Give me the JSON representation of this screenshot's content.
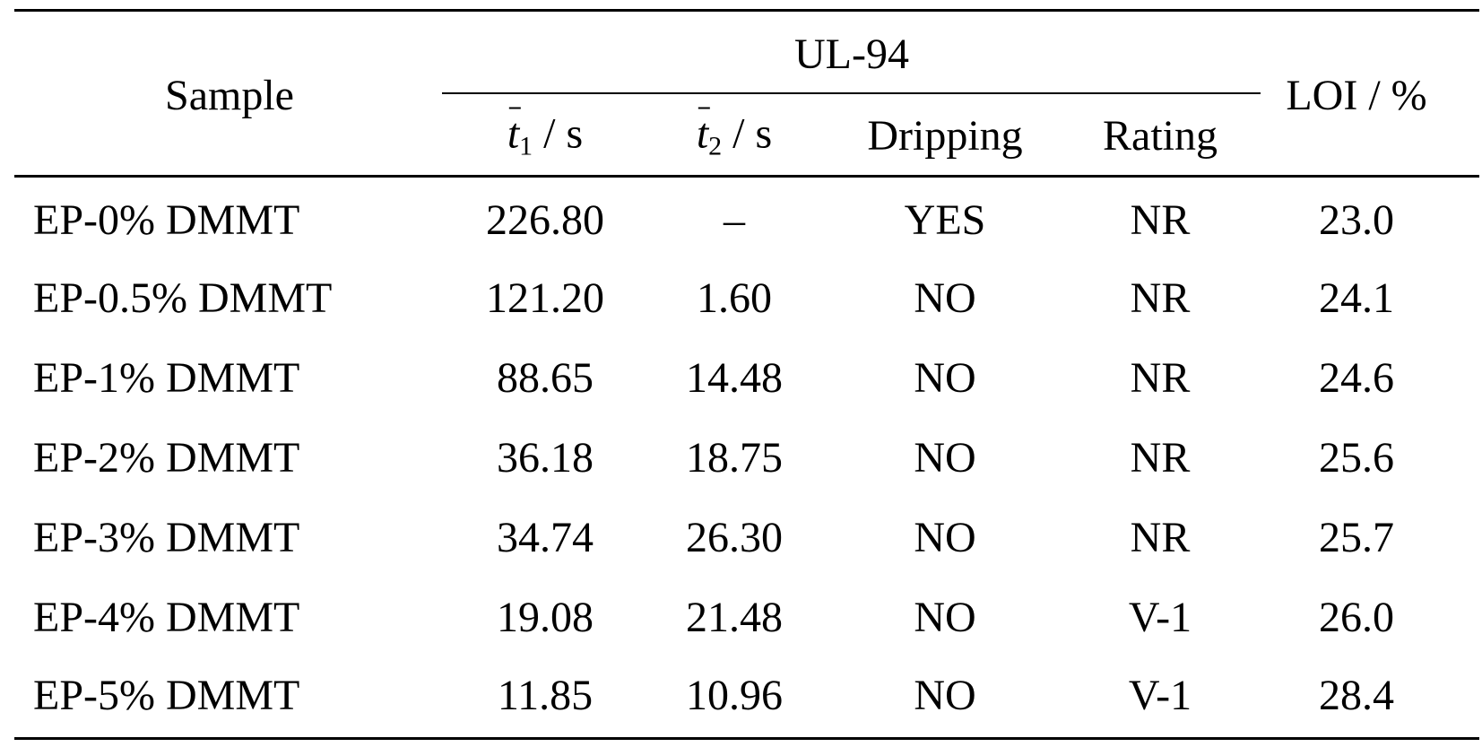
{
  "table": {
    "header": {
      "sample": "Sample",
      "group": "UL-94",
      "t1": {
        "symbol": "t",
        "subscript": "1",
        "unit": " / s"
      },
      "t2": {
        "symbol": "t",
        "subscript": "2",
        "unit": " / s"
      },
      "dripping": "Dripping",
      "rating": "Rating",
      "loi": "LOI / %"
    },
    "rows": [
      {
        "sample": "EP-0% DMMT",
        "t1": "226.80",
        "t2": "–",
        "dripping": "YES",
        "rating": "NR",
        "loi": "23.0"
      },
      {
        "sample": "EP-0.5% DMMT",
        "t1": "121.20",
        "t2": "1.60",
        "dripping": "NO",
        "rating": "NR",
        "loi": "24.1"
      },
      {
        "sample": "EP-1% DMMT",
        "t1": "88.65",
        "t2": "14.48",
        "dripping": "NO",
        "rating": "NR",
        "loi": "24.6"
      },
      {
        "sample": "EP-2% DMMT",
        "t1": "36.18",
        "t2": "18.75",
        "dripping": "NO",
        "rating": "NR",
        "loi": "25.6"
      },
      {
        "sample": "EP-3% DMMT",
        "t1": "34.74",
        "t2": "26.30",
        "dripping": "NO",
        "rating": "NR",
        "loi": "25.7"
      },
      {
        "sample": "EP-4% DMMT",
        "t1": "19.08",
        "t2": "21.48",
        "dripping": "NO",
        "rating": "V-1",
        "loi": "26.0"
      },
      {
        "sample": "EP-5% DMMT",
        "t1": "11.85",
        "t2": "10.96",
        "dripping": "NO",
        "rating": "V-1",
        "loi": "28.4"
      }
    ]
  }
}
